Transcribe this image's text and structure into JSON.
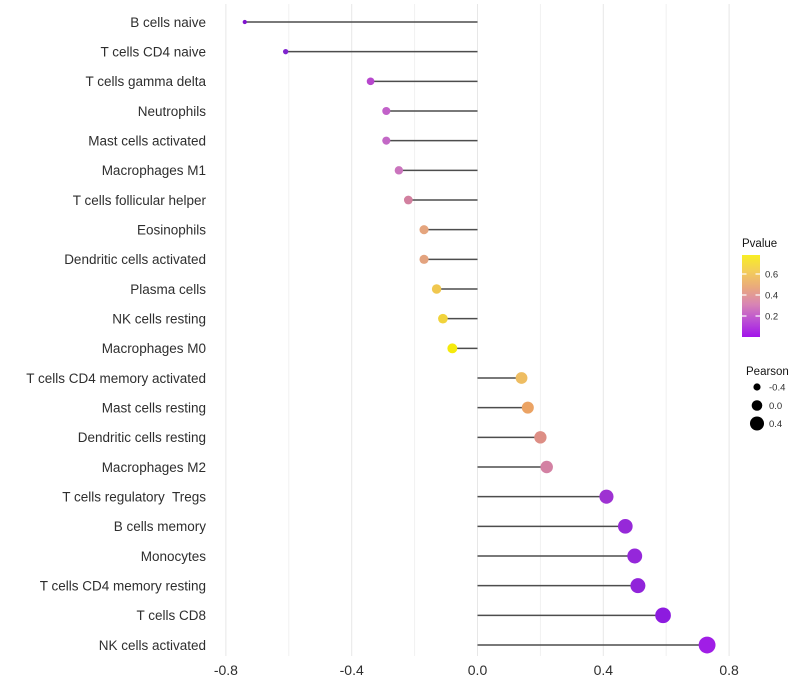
{
  "chart_data": {
    "type": "scatter",
    "subtype": "lollipop",
    "orientation": "horizontal",
    "title": "",
    "xlabel": "",
    "ylabel": "",
    "grid": true,
    "stem_color": "#4d4d4d",
    "x_axis": {
      "range": [
        -0.85,
        0.85
      ],
      "ticks": [
        -0.8,
        -0.4,
        0.0,
        0.4,
        0.8
      ],
      "tick_labels": [
        "-0.8",
        "-0.4",
        "0.0",
        "0.4",
        "0.8"
      ],
      "minor_step": 0.2
    },
    "points": [
      {
        "label": "B cells naive",
        "pearson": -0.74,
        "pvalue": 0.0004,
        "color": "#8013ce"
      },
      {
        "label": "T cells CD4 naive",
        "pearson": -0.61,
        "pvalue": 0.004,
        "color": "#7f24ce"
      },
      {
        "label": "T cells gamma delta",
        "pearson": -0.34,
        "pvalue": 0.1,
        "color": "#b747cd"
      },
      {
        "label": "Neutrophils",
        "pearson": -0.29,
        "pvalue": 0.15,
        "color": "#c261c9"
      },
      {
        "label": "Mast cells activated",
        "pearson": -0.29,
        "pvalue": 0.16,
        "color": "#c368c6"
      },
      {
        "label": "Macrophages M1",
        "pearson": -0.25,
        "pvalue": 0.21,
        "color": "#ca74bd"
      },
      {
        "label": "T cells follicular helper",
        "pearson": -0.22,
        "pvalue": 0.28,
        "color": "#d2809f"
      },
      {
        "label": "Eosinophils",
        "pearson": -0.17,
        "pvalue": 0.38,
        "color": "#e5a57e"
      },
      {
        "label": "Dendritic cells activated",
        "pearson": -0.17,
        "pvalue": 0.38,
        "color": "#e3a37f"
      },
      {
        "label": "Plasma cells",
        "pearson": -0.13,
        "pvalue": 0.53,
        "color": "#f0c74f"
      },
      {
        "label": "NK cells resting",
        "pearson": -0.11,
        "pvalue": 0.58,
        "color": "#f1d33b"
      },
      {
        "label": "Macrophages M0",
        "pearson": -0.08,
        "pvalue": 0.7,
        "color": "#f5ea0c"
      },
      {
        "label": "T cells CD4 memory activated",
        "pearson": 0.14,
        "pvalue": 0.47,
        "color": "#eebd62"
      },
      {
        "label": "Mast cells resting",
        "pearson": 0.16,
        "pvalue": 0.41,
        "color": "#eba364"
      },
      {
        "label": "Dendritic cells resting",
        "pearson": 0.2,
        "pvalue": 0.32,
        "color": "#dd8e85"
      },
      {
        "label": "Macrophages M2",
        "pearson": 0.22,
        "pvalue": 0.27,
        "color": "#d381a3"
      },
      {
        "label": "T cells regulatory  Tregs",
        "pearson": 0.41,
        "pvalue": 0.055,
        "color": "#9e32d2"
      },
      {
        "label": "B cells memory",
        "pearson": 0.47,
        "pvalue": 0.028,
        "color": "#9629d8"
      },
      {
        "label": "Monocytes",
        "pearson": 0.5,
        "pvalue": 0.021,
        "color": "#9527da"
      },
      {
        "label": "T cells CD4 memory resting",
        "pearson": 0.51,
        "pvalue": 0.018,
        "color": "#9124da"
      },
      {
        "label": "T cells CD8",
        "pearson": 0.59,
        "pvalue": 0.005,
        "color": "#8d1bdf"
      },
      {
        "label": "NK cells activated",
        "pearson": 0.73,
        "pvalue": 0.0002,
        "color": "#a01ee6"
      }
    ],
    "legends": {
      "pvalue": {
        "title": "Pvalue",
        "tick_labels": [
          "0.6",
          "0.4",
          "0.2"
        ],
        "gradient_top_to_bottom": [
          "#f8ee24",
          "#f3cd5a",
          "#e9a87e",
          "#d885b4",
          "#bb4fd4",
          "#a214ea"
        ]
      },
      "pearson": {
        "title": "Pearson",
        "tick_values": [
          -0.4,
          0.0,
          0.4
        ],
        "tick_labels": [
          "-0.4",
          "0.0",
          "0.4"
        ],
        "dot_color": "#000000"
      }
    }
  }
}
